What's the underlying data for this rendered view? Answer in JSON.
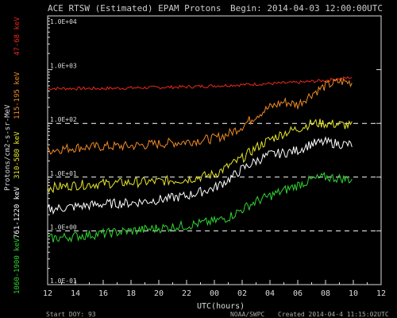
{
  "chart_data": {
    "type": "line",
    "title": "ACE RTSW (Estimated) EPAM Protons",
    "begin_label": "Begin: 2014-04-03 12:00:00UTC",
    "xlabel": "UTC(hours)",
    "x_ticks": [
      "12",
      "14",
      "16",
      "18",
      "20",
      "22",
      "00",
      "02",
      "04",
      "06",
      "08",
      "10",
      "12"
    ],
    "ylabel_main": "Protons/cm2-s-sr-MeV",
    "y_ticks": [
      "1.0E-01",
      "1.0E+00",
      "1.0E+01",
      "1.0E+02",
      "1.0E+03",
      "1.0E+04"
    ],
    "ylim_log10": [
      -1,
      4
    ],
    "threshold_lines_log10": [
      0,
      1,
      2
    ],
    "series": [
      {
        "name": "47-68 keV",
        "color": "#e8291c",
        "points": [
          [
            12,
            2.65
          ],
          [
            14,
            2.65
          ],
          [
            16,
            2.65
          ],
          [
            18,
            2.66
          ],
          [
            20,
            2.67
          ],
          [
            22,
            2.68
          ],
          [
            24,
            2.7
          ],
          [
            26,
            2.72
          ],
          [
            28,
            2.74
          ],
          [
            30,
            2.76
          ],
          [
            32,
            2.8
          ],
          [
            34,
            2.86
          ]
        ]
      },
      {
        "name": "115-195 keV",
        "color": "#f08a24",
        "points": [
          [
            12,
            1.5
          ],
          [
            14,
            1.55
          ],
          [
            16,
            1.57
          ],
          [
            18,
            1.58
          ],
          [
            20,
            1.62
          ],
          [
            22,
            1.66
          ],
          [
            24,
            1.72
          ],
          [
            25,
            1.8
          ],
          [
            26,
            1.95
          ],
          [
            27,
            2.15
          ],
          [
            28,
            2.3
          ],
          [
            29,
            2.4
          ],
          [
            30,
            2.35
          ],
          [
            31,
            2.55
          ],
          [
            32,
            2.7
          ],
          [
            33,
            2.78
          ],
          [
            34,
            2.76
          ]
        ]
      },
      {
        "name": "310-580 keV",
        "color": "#e6e62a",
        "points": [
          [
            12,
            0.8
          ],
          [
            14,
            0.85
          ],
          [
            16,
            0.88
          ],
          [
            18,
            0.9
          ],
          [
            20,
            0.92
          ],
          [
            22,
            0.96
          ],
          [
            24,
            1.05
          ],
          [
            25,
            1.2
          ],
          [
            26,
            1.35
          ],
          [
            27,
            1.55
          ],
          [
            28,
            1.7
          ],
          [
            29,
            1.82
          ],
          [
            30,
            1.9
          ],
          [
            31,
            2.0
          ],
          [
            32,
            2.0
          ],
          [
            33,
            1.98
          ],
          [
            34,
            1.95
          ]
        ]
      },
      {
        "name": "761-1220 keV",
        "color": "#ffffff",
        "points": [
          [
            12,
            0.4
          ],
          [
            14,
            0.45
          ],
          [
            16,
            0.5
          ],
          [
            18,
            0.52
          ],
          [
            20,
            0.58
          ],
          [
            22,
            0.65
          ],
          [
            24,
            0.8
          ],
          [
            25,
            0.95
          ],
          [
            26,
            1.15
          ],
          [
            27,
            1.3
          ],
          [
            28,
            1.42
          ],
          [
            29,
            1.45
          ],
          [
            30,
            1.5
          ],
          [
            31,
            1.62
          ],
          [
            32,
            1.65
          ],
          [
            33,
            1.62
          ],
          [
            34,
            1.6
          ]
        ]
      },
      {
        "name": "1060-1900 keV",
        "color": "#2fd62f",
        "points": [
          [
            12,
            -0.15
          ],
          [
            14,
            -0.1
          ],
          [
            16,
            -0.05
          ],
          [
            18,
            0.0
          ],
          [
            20,
            0.05
          ],
          [
            22,
            0.1
          ],
          [
            24,
            0.18
          ],
          [
            25,
            0.25
          ],
          [
            26,
            0.4
          ],
          [
            27,
            0.55
          ],
          [
            28,
            0.65
          ],
          [
            29,
            0.75
          ],
          [
            30,
            0.85
          ],
          [
            31,
            0.95
          ],
          [
            32,
            1.0
          ],
          [
            33,
            0.98
          ],
          [
            34,
            0.95
          ]
        ]
      }
    ],
    "xlim": [
      12,
      36
    ],
    "footer_left": "Start DOY: 93",
    "footer_mid": "NOAA/SWPC",
    "footer_right": "Created 2014-04-4 11:15:02UTC"
  }
}
